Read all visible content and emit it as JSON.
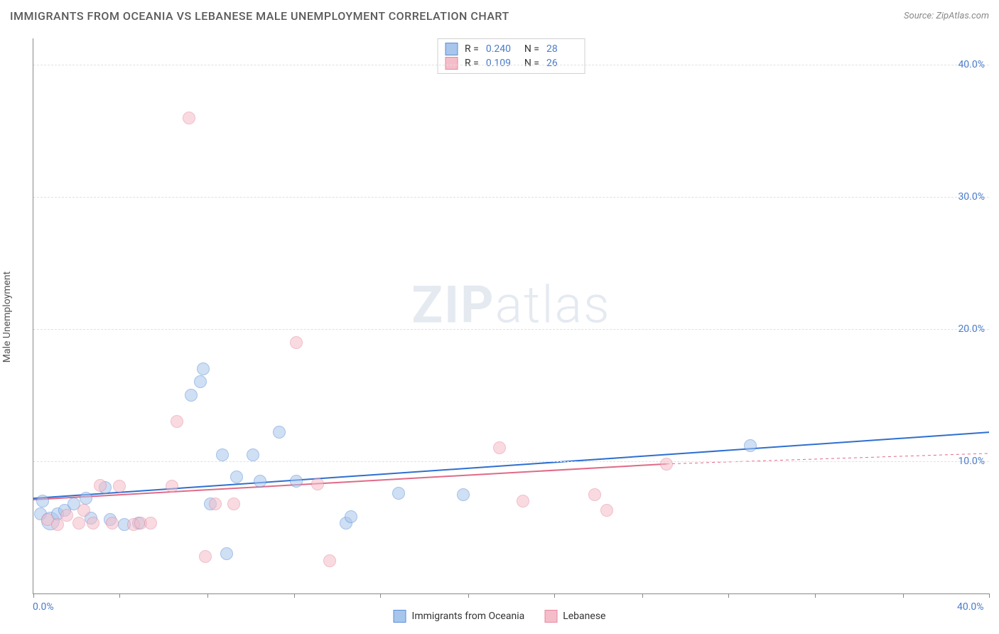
{
  "header": {
    "title": "IMMIGRANTS FROM OCEANIA VS LEBANESE MALE UNEMPLOYMENT CORRELATION CHART",
    "source_prefix": "Source: ",
    "source": "ZipAtlas.com"
  },
  "ylabel": "Male Unemployment",
  "watermark_bold": "ZIP",
  "watermark_rest": "atlas",
  "chart": {
    "type": "scatter",
    "background_color": "#ffffff",
    "grid_color": "#e0e0e0",
    "axis_color": "#888888",
    "xlim": [
      0,
      40
    ],
    "ylim": [
      0,
      42
    ],
    "yticks": [
      10,
      20,
      30,
      40
    ],
    "ytick_labels": [
      "10.0%",
      "20.0%",
      "30.0%",
      "40.0%"
    ],
    "xticks": [
      0,
      3.6,
      7.3,
      10.9,
      14.5,
      18.2,
      21.8,
      25.5,
      29.1,
      32.7,
      36.4,
      40
    ],
    "xtick_labels_left": "0.0%",
    "xtick_labels_right": "40.0%",
    "marker_radius": 9,
    "marker_opacity": 0.55,
    "series": [
      {
        "name": "Immigrants from Oceania",
        "color_fill": "#a8c5ec",
        "color_stroke": "#5b8fd6",
        "line_color": "#2e6fd0",
        "line_width": 2,
        "trend": {
          "x1": 0,
          "y1": 7.2,
          "x2": 40,
          "y2": 12.2
        },
        "R": "0.240",
        "N": "28",
        "points": [
          {
            "x": 0.3,
            "y": 6.0
          },
          {
            "x": 0.4,
            "y": 7.0
          },
          {
            "x": 0.7,
            "y": 5.5,
            "r": 13
          },
          {
            "x": 1.0,
            "y": 6.0
          },
          {
            "x": 1.3,
            "y": 6.3
          },
          {
            "x": 1.7,
            "y": 6.8
          },
          {
            "x": 2.2,
            "y": 7.2
          },
          {
            "x": 2.4,
            "y": 5.7
          },
          {
            "x": 3.0,
            "y": 8.0
          },
          {
            "x": 3.2,
            "y": 5.6
          },
          {
            "x": 3.8,
            "y": 5.2
          },
          {
            "x": 4.4,
            "y": 5.3
          },
          {
            "x": 6.6,
            "y": 15.0
          },
          {
            "x": 7.0,
            "y": 16.0
          },
          {
            "x": 7.1,
            "y": 17.0
          },
          {
            "x": 7.4,
            "y": 6.8
          },
          {
            "x": 7.9,
            "y": 10.5
          },
          {
            "x": 8.1,
            "y": 3.0
          },
          {
            "x": 8.5,
            "y": 8.8
          },
          {
            "x": 9.2,
            "y": 10.5
          },
          {
            "x": 9.5,
            "y": 8.5
          },
          {
            "x": 10.3,
            "y": 12.2
          },
          {
            "x": 11.0,
            "y": 8.5
          },
          {
            "x": 13.1,
            "y": 5.3
          },
          {
            "x": 13.3,
            "y": 5.8
          },
          {
            "x": 15.3,
            "y": 7.6
          },
          {
            "x": 18.0,
            "y": 7.5
          },
          {
            "x": 30.0,
            "y": 11.2
          }
        ]
      },
      {
        "name": "Lebanese",
        "color_fill": "#f5bdc9",
        "color_stroke": "#e48aa0",
        "line_color": "#e06a87",
        "line_width": 2,
        "trend": {
          "x1": 0,
          "y1": 7.1,
          "x2": 26.5,
          "y2": 9.8
        },
        "trend_dash": {
          "x1": 26.5,
          "y1": 9.8,
          "x2": 40,
          "y2": 10.6
        },
        "R": "0.109",
        "N": "26",
        "points": [
          {
            "x": 0.6,
            "y": 5.6
          },
          {
            "x": 1.0,
            "y": 5.2
          },
          {
            "x": 1.4,
            "y": 5.9
          },
          {
            "x": 1.9,
            "y": 5.3
          },
          {
            "x": 2.1,
            "y": 6.3
          },
          {
            "x": 2.5,
            "y": 5.3
          },
          {
            "x": 2.8,
            "y": 8.2
          },
          {
            "x": 3.3,
            "y": 5.3
          },
          {
            "x": 3.6,
            "y": 8.1
          },
          {
            "x": 4.2,
            "y": 5.2
          },
          {
            "x": 4.5,
            "y": 5.3
          },
          {
            "x": 4.9,
            "y": 5.3
          },
          {
            "x": 5.8,
            "y": 8.1
          },
          {
            "x": 6.0,
            "y": 13.0
          },
          {
            "x": 6.5,
            "y": 36.0
          },
          {
            "x": 7.2,
            "y": 2.8
          },
          {
            "x": 7.6,
            "y": 6.8
          },
          {
            "x": 8.4,
            "y": 6.8
          },
          {
            "x": 11.0,
            "y": 19.0
          },
          {
            "x": 11.9,
            "y": 8.3
          },
          {
            "x": 12.4,
            "y": 2.5
          },
          {
            "x": 19.5,
            "y": 11.0
          },
          {
            "x": 20.5,
            "y": 7.0
          },
          {
            "x": 23.5,
            "y": 7.5
          },
          {
            "x": 24.0,
            "y": 6.3
          },
          {
            "x": 26.5,
            "y": 9.8
          }
        ]
      }
    ]
  },
  "legend": {
    "stat_r_label": "R =",
    "stat_n_label": "N ="
  }
}
